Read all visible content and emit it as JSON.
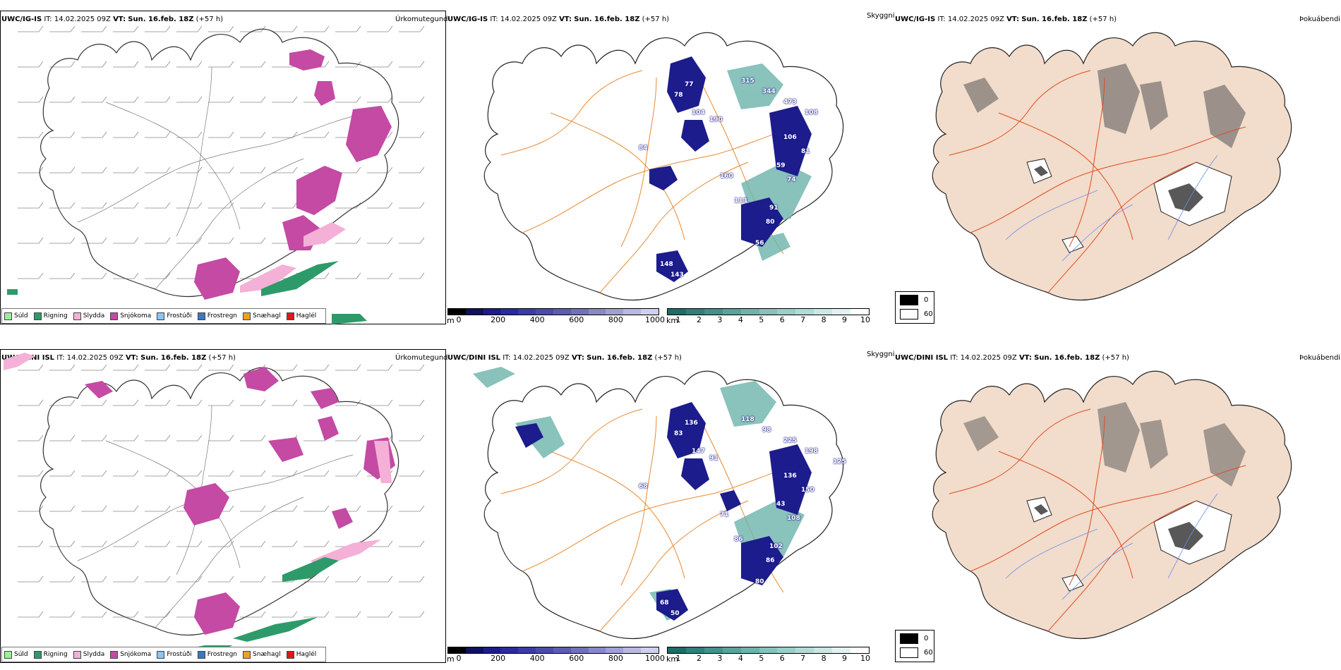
{
  "rows": [
    {
      "model": "UWC/IG-IS",
      "it": "IT: 14.02.2025 09Z",
      "vt_label": "VT:",
      "vt": "Sun. 16.feb. 18Z",
      "lead": "(+57 h)",
      "snow_labels": [
        "77",
        "78",
        "104",
        "190",
        "84",
        "160",
        "113",
        "91",
        "59",
        "315",
        "344",
        "473",
        "108",
        "106",
        "81",
        "74",
        "80",
        "56",
        "148",
        "143"
      ]
    },
    {
      "model": "UWC/DINI ISL",
      "it": "IT: 14.02.2025 09Z",
      "vt_label": "VT:",
      "vt": "Sun. 16.feb. 18Z",
      "lead": "(+57 h)",
      "snow_labels": [
        "136",
        "83",
        "147",
        "91",
        "68",
        "71",
        "86",
        "102",
        "43",
        "118",
        "98",
        "225",
        "198",
        "136",
        "150",
        "108",
        "86",
        "80",
        "68",
        "50",
        "125"
      ]
    }
  ],
  "panel_titles": {
    "precip": "Úrkomutegund",
    "visibility": "Skyggni",
    "fog": "Þokuábendi"
  },
  "precip_legend": [
    {
      "label": "Súld",
      "color": "#98f098"
    },
    {
      "label": "Rigning",
      "color": "#2e9a6a"
    },
    {
      "label": "Slydda",
      "color": "#f4b0d6"
    },
    {
      "label": "Snjókoma",
      "color": "#c44aa4"
    },
    {
      "label": "Frostúði",
      "color": "#8ec4f0"
    },
    {
      "label": "Frostregn",
      "color": "#3a78c4"
    },
    {
      "label": "Snæhagl",
      "color": "#f0a020"
    },
    {
      "label": "Haglél",
      "color": "#e01818"
    }
  ],
  "snow_colorbar": {
    "unit": "m",
    "ticks": [
      "0",
      "200",
      "400",
      "600",
      "800",
      "1000"
    ],
    "colors": [
      "#000000",
      "#101060",
      "#1c1c8c",
      "#2a2aa0",
      "#3a3aa8",
      "#4a4aac",
      "#5c5cb4",
      "#7070bc",
      "#8888c8",
      "#a0a0d4",
      "#b8b8e0",
      "#d0d0ec"
    ]
  },
  "vis_colorbar": {
    "unit": "km",
    "ticks": [
      "1",
      "2",
      "3",
      "4",
      "5",
      "6",
      "7",
      "8",
      "9",
      "10"
    ],
    "colors": [
      "#1a6e66",
      "#2e8078",
      "#40928a",
      "#56a49a",
      "#6cb4aa",
      "#84c2ba",
      "#9ccec8",
      "#b4dad6",
      "#cce6e2",
      "#e2f2f0",
      "#ffffff"
    ]
  },
  "fog_legend": [
    {
      "label": "0",
      "color": "#000000"
    },
    {
      "label": "60",
      "color": "#ffffff"
    }
  ],
  "colors": {
    "snow": "#c44aa4",
    "sleet": "#f4b0d6",
    "rain": "#2e9a6a",
    "roads": "#e88a30",
    "roads_fog": "#e04a1e",
    "land_fog": "#f2dccb",
    "rivers": "#6a8ef0"
  }
}
